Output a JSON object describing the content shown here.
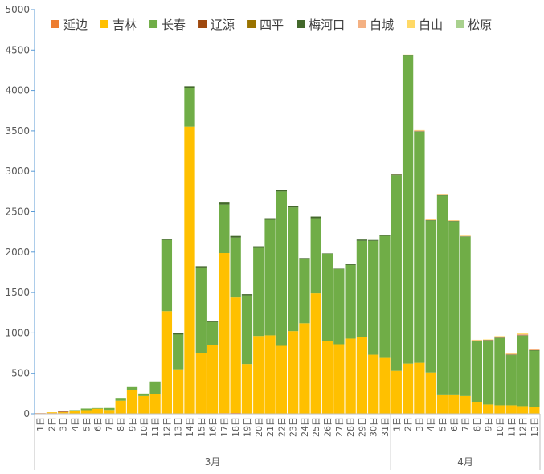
{
  "chart_data": {
    "type": "bar",
    "stacked": true,
    "ylim": [
      0,
      5000
    ],
    "yticks": [
      0,
      500,
      1000,
      1500,
      2000,
      2500,
      3000,
      3500,
      4000,
      4500,
      5000
    ],
    "legend_position": "top",
    "grid": false,
    "categories": [
      "1日",
      "2日",
      "3日",
      "4日",
      "5日",
      "6日",
      "7日",
      "8日",
      "9日",
      "10日",
      "11日",
      "12日",
      "13日",
      "14日",
      "15日",
      "16日",
      "17日",
      "18日",
      "19日",
      "20日",
      "21日",
      "22日",
      "23日",
      "24日",
      "25日",
      "26日",
      "27日",
      "28日",
      "29日",
      "30日",
      "31日",
      "1日",
      "2日",
      "3日",
      "4日",
      "5日",
      "6日",
      "7日",
      "8日",
      "9日",
      "10日",
      "11日",
      "12日",
      "13日"
    ],
    "groups": [
      {
        "label": "3月",
        "start": 0,
        "end": 30
      },
      {
        "label": "4月",
        "start": 31,
        "end": 43
      }
    ],
    "series": [
      {
        "name": "延边",
        "color": "#ED7D31",
        "values": [
          8,
          8,
          7,
          5,
          5,
          3,
          2,
          2,
          0,
          0,
          0,
          0,
          0,
          2,
          0,
          5,
          8,
          10,
          5,
          2,
          0,
          0,
          2,
          0,
          0,
          0,
          0,
          0,
          0,
          0,
          0,
          0,
          0,
          0,
          0,
          0,
          0,
          0,
          0,
          0,
          0,
          0,
          0,
          0
        ]
      },
      {
        "name": "吉林",
        "color": "#FFC000",
        "values": [
          0,
          10,
          12,
          30,
          40,
          60,
          45,
          160,
          290,
          220,
          240,
          1270,
          550,
          3550,
          750,
          850,
          1980,
          1430,
          610,
          960,
          970,
          840,
          1020,
          1120,
          1490,
          900,
          860,
          930,
          950,
          730,
          700,
          530,
          620,
          630,
          510,
          230,
          230,
          220,
          140,
          115,
          105,
          105,
          95,
          80
        ]
      },
      {
        "name": "长春",
        "color": "#70AD47",
        "values": [
          0,
          0,
          0,
          10,
          20,
          8,
          25,
          25,
          40,
          30,
          160,
          880,
          430,
          480,
          1060,
          280,
          600,
          740,
          850,
          1090,
          1430,
          1910,
          1530,
          790,
          930,
          1080,
          930,
          910,
          1190,
          1410,
          1500,
          2420,
          3810,
          2860,
          1880,
          2470,
          2150,
          1970,
          760,
          790,
          830,
          620,
          870,
          700
        ]
      },
      {
        "name": "辽源",
        "color": "#9E480E",
        "values": [
          0,
          0,
          8,
          0,
          0,
          0,
          0,
          0,
          0,
          0,
          0,
          0,
          0,
          0,
          0,
          0,
          0,
          0,
          0,
          0,
          0,
          0,
          0,
          0,
          0,
          0,
          0,
          0,
          0,
          0,
          0,
          0,
          0,
          0,
          0,
          0,
          0,
          0,
          0,
          0,
          0,
          0,
          0,
          0
        ]
      },
      {
        "name": "四平",
        "color": "#997300",
        "values": [
          0,
          0,
          0,
          0,
          0,
          0,
          0,
          0,
          0,
          0,
          0,
          0,
          0,
          0,
          0,
          0,
          0,
          0,
          0,
          0,
          0,
          0,
          0,
          0,
          0,
          0,
          0,
          0,
          0,
          0,
          0,
          0,
          0,
          0,
          0,
          0,
          0,
          0,
          0,
          0,
          0,
          0,
          0,
          0
        ]
      },
      {
        "name": "梅河口",
        "color": "#43682B",
        "values": [
          0,
          0,
          0,
          0,
          0,
          0,
          0,
          0,
          0,
          0,
          0,
          15,
          15,
          20,
          15,
          15,
          25,
          20,
          15,
          20,
          20,
          20,
          20,
          15,
          20,
          5,
          5,
          15,
          15,
          10,
          10,
          10,
          5,
          5,
          5,
          5,
          5,
          5,
          5,
          5,
          5,
          5,
          5,
          5
        ]
      },
      {
        "name": "白城",
        "color": "#F4B183",
        "values": [
          0,
          0,
          0,
          0,
          0,
          0,
          0,
          0,
          0,
          0,
          0,
          0,
          0,
          0,
          0,
          0,
          0,
          0,
          0,
          0,
          0,
          0,
          0,
          0,
          0,
          0,
          0,
          0,
          0,
          0,
          0,
          5,
          5,
          10,
          5,
          5,
          5,
          5,
          5,
          5,
          10,
          10,
          15,
          10
        ]
      },
      {
        "name": "白山",
        "color": "#FFD966",
        "values": [
          0,
          0,
          0,
          0,
          0,
          0,
          0,
          0,
          0,
          0,
          0,
          0,
          0,
          0,
          0,
          0,
          0,
          0,
          0,
          0,
          0,
          0,
          0,
          0,
          0,
          0,
          0,
          0,
          0,
          0,
          0,
          5,
          5,
          5,
          5,
          5,
          5,
          5,
          5,
          5,
          10,
          5,
          10,
          5
        ]
      },
      {
        "name": "松原",
        "color": "#A9D18E",
        "values": [
          0,
          0,
          0,
          0,
          0,
          0,
          0,
          0,
          0,
          0,
          0,
          0,
          0,
          0,
          0,
          0,
          0,
          0,
          0,
          0,
          0,
          0,
          0,
          0,
          0,
          0,
          0,
          0,
          0,
          0,
          0,
          0,
          0,
          0,
          0,
          0,
          0,
          0,
          0,
          0,
          0,
          0,
          0,
          0
        ]
      }
    ]
  }
}
